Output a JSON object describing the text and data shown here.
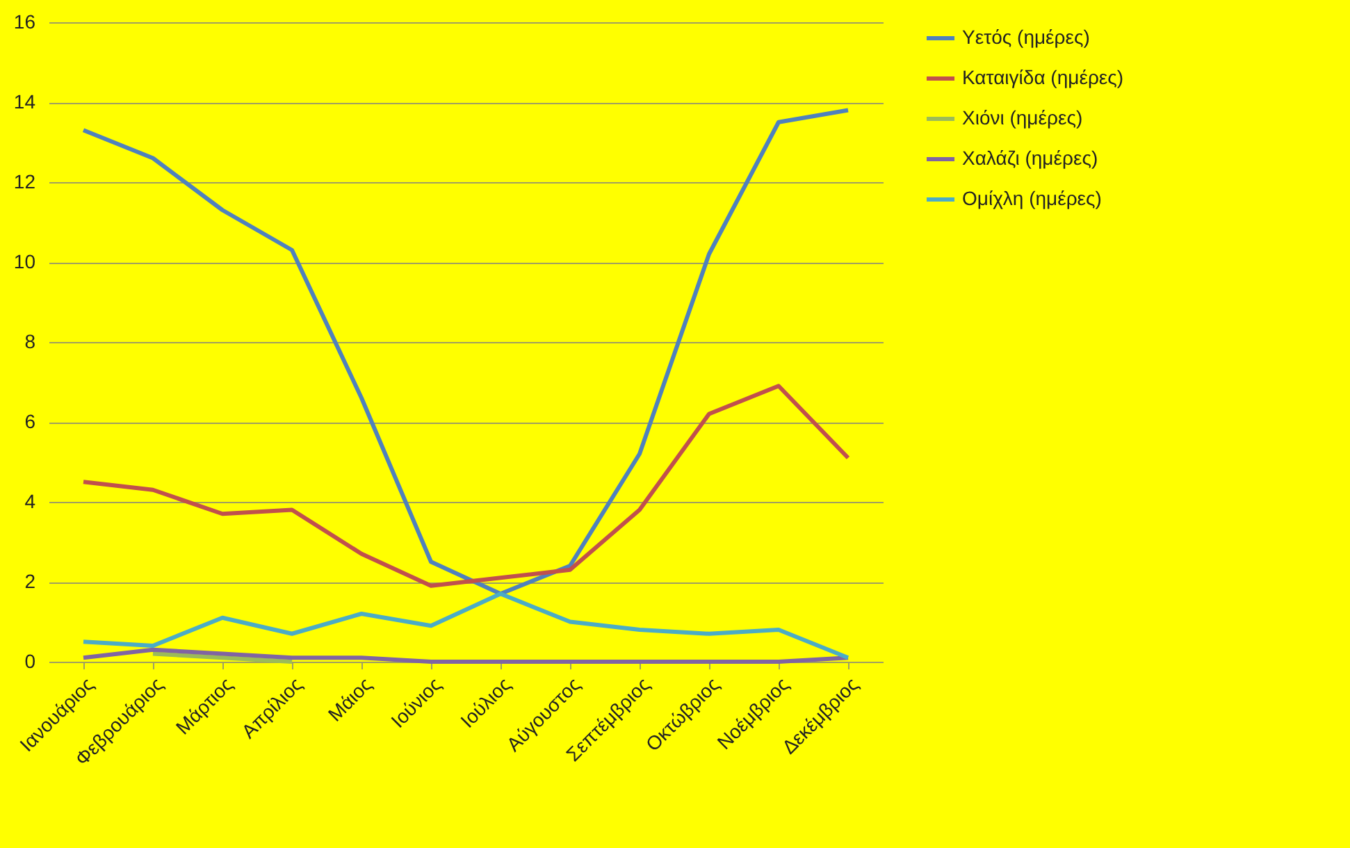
{
  "chart_data": {
    "type": "line",
    "categories": [
      "Ιανουάριος",
      "Φεβρουάριος",
      "Μάρτιος",
      "Απρίλιος",
      "Μάιος",
      "Ιούνιος",
      "Ιούλιος",
      "Αύγουστος",
      "Σεπτέμβριος",
      "Οκτώβριος",
      "Νοέμβριος",
      "Δεκέμβριος"
    ],
    "series": [
      {
        "name": "Υετός (ημέρες)",
        "color": "#4f81bd",
        "values": [
          13.3,
          12.6,
          11.3,
          10.3,
          6.6,
          2.5,
          1.7,
          2.4,
          5.2,
          10.2,
          13.5,
          13.8
        ]
      },
      {
        "name": "Καταιγίδα (ημέρες)",
        "color": "#c0504d",
        "values": [
          4.5,
          4.3,
          3.7,
          3.8,
          2.7,
          1.9,
          2.1,
          2.3,
          3.8,
          6.2,
          6.9,
          5.1
        ]
      },
      {
        "name": "Χιόνι (ημέρες)",
        "color": "#9bbb59",
        "values": [
          null,
          0.2,
          0.1,
          0,
          null,
          null,
          null,
          null,
          null,
          null,
          null,
          null
        ]
      },
      {
        "name": "Χαλάζι (ημέρες)",
        "color": "#8064a2",
        "values": [
          0.1,
          0.3,
          0.2,
          0.1,
          0.1,
          0,
          0,
          0,
          0,
          0,
          0,
          0.1
        ]
      },
      {
        "name": "Ομίχλη (ημέρες)",
        "color": "#4bacc6",
        "values": [
          0.5,
          0.4,
          1.1,
          0.7,
          1.2,
          0.9,
          1.7,
          1.0,
          0.8,
          0.7,
          0.8,
          0.1
        ]
      }
    ],
    "ylim": [
      0,
      16
    ],
    "yticks": [
      0,
      2,
      4,
      6,
      8,
      10,
      12,
      14,
      16
    ],
    "grid": "y",
    "legend": "right",
    "marker": "none",
    "line_style": "solid"
  }
}
